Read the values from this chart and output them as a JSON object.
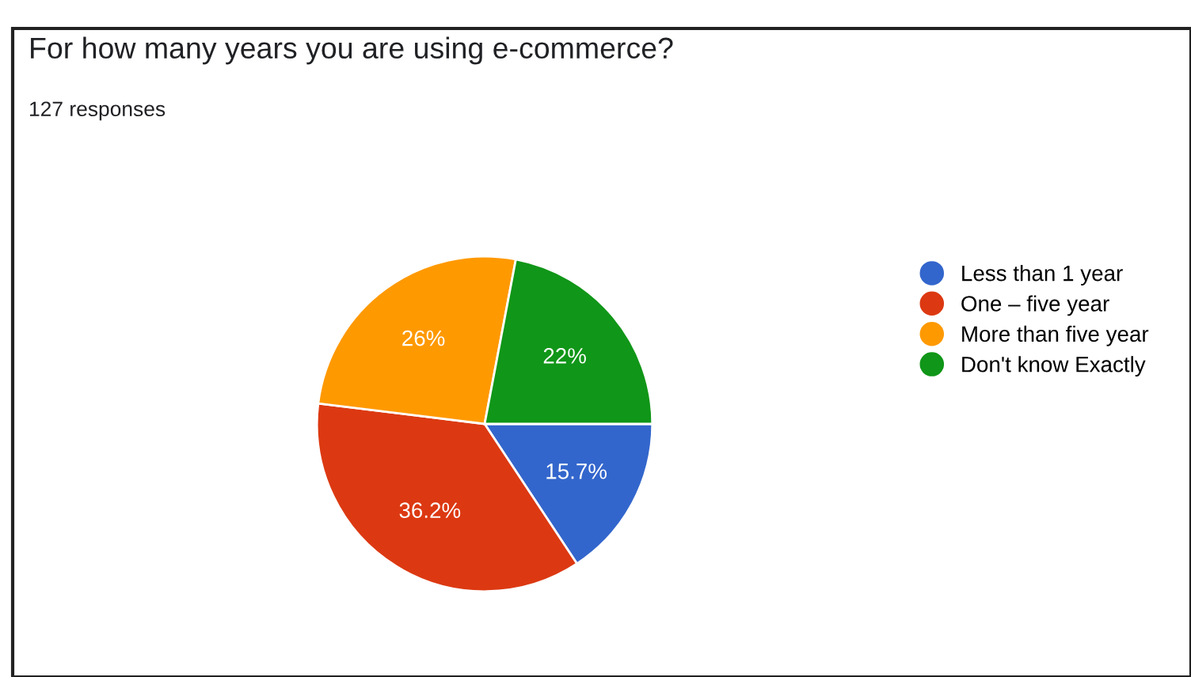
{
  "chart_data": {
    "type": "pie",
    "title": "For how many years you are using e-commerce?",
    "subtitle": "127 responses",
    "categories": [
      "Less than 1 year",
      "One – five year",
      "More than five year",
      "Don't know Exactly"
    ],
    "values": [
      15.7,
      36.2,
      26,
      22
    ],
    "colors": [
      "#3366cc",
      "#dc3912",
      "#ff9900",
      "#109618"
    ],
    "value_labels": [
      "15.7%",
      "36.2%",
      "26%",
      "22%"
    ],
    "legend": "right"
  }
}
